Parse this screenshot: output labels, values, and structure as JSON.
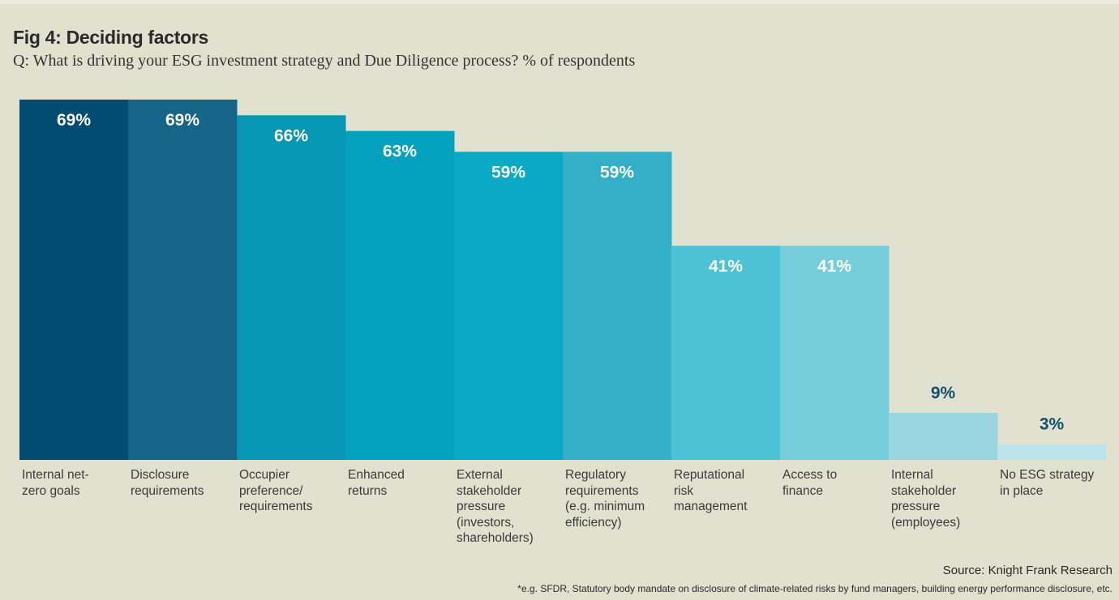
{
  "header": {
    "title": "Fig 4: Deciding factors",
    "subtitle": "Q: What is driving your ESG investment strategy and Due Diligence process? % of respondents"
  },
  "chart_data": {
    "type": "bar",
    "title": "Fig 4: Deciding factors",
    "subtitle": "Q: What is driving your ESG investment strategy and Due Diligence process? % of respondents",
    "xlabel": "",
    "ylabel": "% of respondents",
    "ylim": [
      0,
      69
    ],
    "grid": false,
    "categories": [
      "Internal net-zero goals",
      "Disclosure requirements",
      "Occupier preference/ requirements",
      "Enhanced returns",
      "External stakeholder pressure (investors, shareholders)",
      "Regulatory requirements (e.g. minimum efficiency)",
      "Reputational risk management",
      "Access to finance",
      "Internal stakeholder pressure (employees)",
      "No ESG strategy in place"
    ],
    "label_lines": [
      [
        "Internal net-",
        "zero goals"
      ],
      [
        "Disclosure",
        "requirements"
      ],
      [
        "Occupier",
        "preference/",
        "requirements"
      ],
      [
        "Enhanced",
        "returns"
      ],
      [
        "External",
        "stakeholder",
        "pressure",
        "(investors,",
        "shareholders)"
      ],
      [
        "Regulatory",
        "requirements",
        "(e.g. minimum",
        "efficiency)"
      ],
      [
        "Reputational",
        "risk",
        "management"
      ],
      [
        "Access to",
        "finance"
      ],
      [
        "Internal",
        "stakeholder",
        "pressure",
        "(employees)"
      ],
      [
        "No ESG strategy",
        "in place"
      ]
    ],
    "values": [
      69,
      69,
      66,
      63,
      59,
      59,
      41,
      41,
      9,
      3
    ],
    "data_labels": [
      "69%",
      "69%",
      "66%",
      "63%",
      "59%",
      "59%",
      "41%",
      "41%",
      "9%",
      "3%"
    ],
    "colors": [
      "#014c70",
      "#146587",
      "#0797b5",
      "#02a2bf",
      "#0baac4",
      "#33b0c8",
      "#4cc2d4",
      "#75cdda",
      "#99d6e1",
      "#bce3ea"
    ],
    "label_color_inside": "#ffffff",
    "label_color_outside": "#14506e"
  },
  "footer": {
    "source": "Source: Knight Frank Research",
    "note": "*e.g. SFDR, Statutory body mandate on disclosure of climate-related risks by fund managers, building energy performance disclosure, etc."
  }
}
